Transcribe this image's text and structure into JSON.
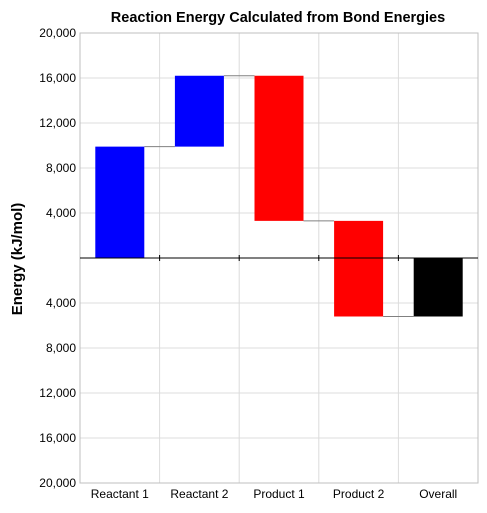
{
  "chart_data": {
    "type": "bar",
    "subtype": "waterfall",
    "title": "Reaction Energy Calculated from Bond Energies",
    "ylabel": "Energy (kJ/mol)",
    "xlabel": "",
    "ylim": [
      -20000,
      20000
    ],
    "y_ticks": [
      20000,
      16000,
      12000,
      8000,
      4000,
      0,
      -4000,
      -8000,
      -12000,
      -16000,
      -20000
    ],
    "y_tick_labels": [
      "20,000",
      "16,000",
      "12,000",
      "8,000",
      "4,000",
      "",
      "4,000",
      "8,000",
      "12,000",
      "16,000",
      "20,000"
    ],
    "categories": [
      "Reactant 1",
      "Reactant 2",
      "Product 1",
      "Product 2",
      "Overall"
    ],
    "bars": [
      {
        "start": 0,
        "end": 9900,
        "color": "#0000ff"
      },
      {
        "start": 9900,
        "end": 16200,
        "color": "#0000ff"
      },
      {
        "start": 16200,
        "end": 3300,
        "color": "#ff0000"
      },
      {
        "start": 3300,
        "end": -5200,
        "color": "#ff0000"
      },
      {
        "start": 0,
        "end": -5200,
        "color": "#000000"
      }
    ],
    "grid": true,
    "legend": "none"
  }
}
